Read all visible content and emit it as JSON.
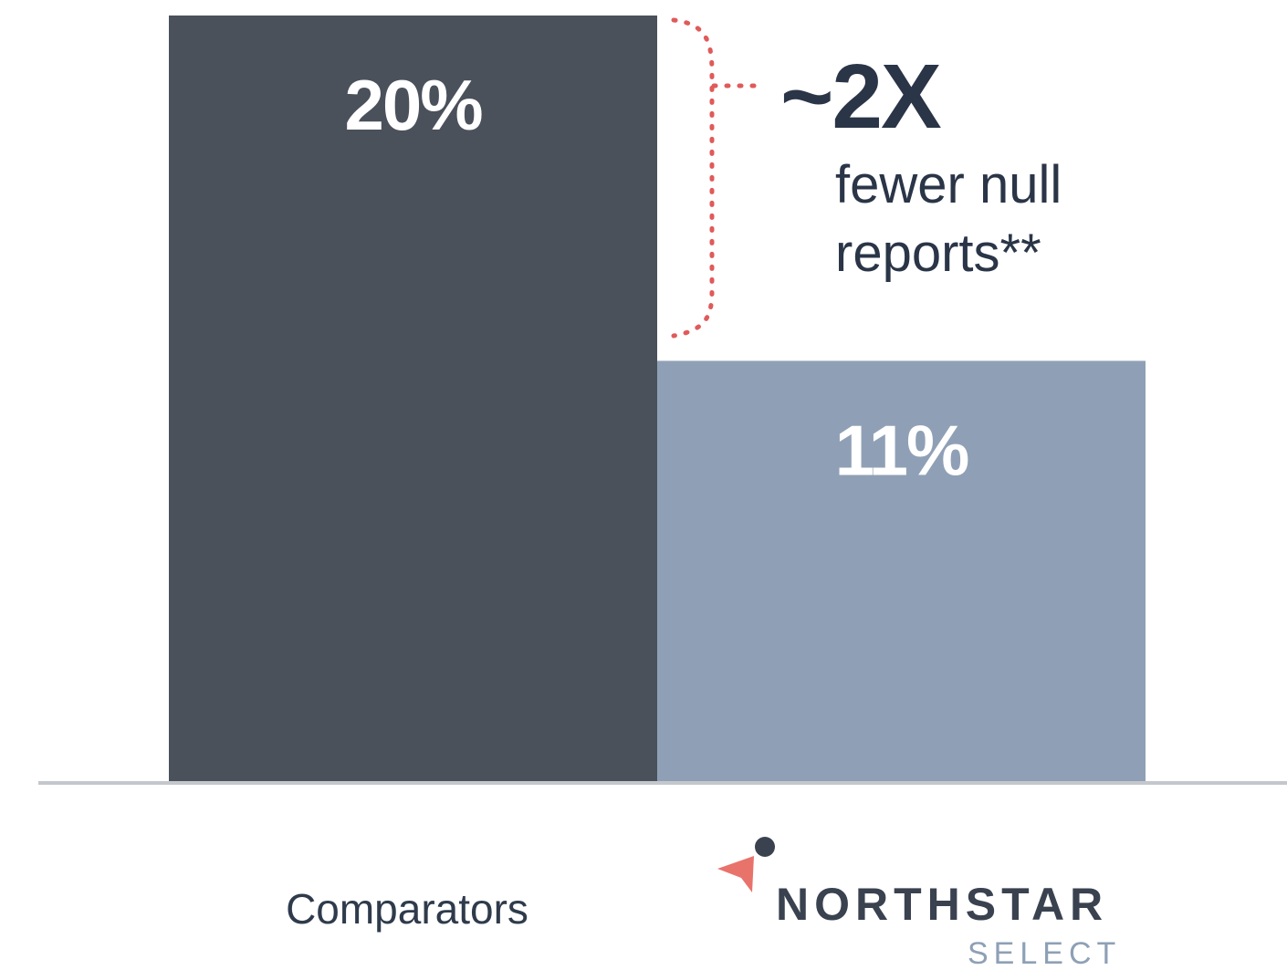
{
  "chart_data": {
    "type": "bar",
    "categories": [
      "Comparators",
      "NORTHSTAR SELECT"
    ],
    "values": [
      20,
      11
    ],
    "value_labels": [
      "20%",
      "11%"
    ],
    "ylim": [
      0,
      20
    ],
    "grid": false,
    "colors": [
      "#4a515b",
      "#8fa0b6"
    ],
    "annotation": {
      "big": "~2X",
      "line1": "fewer null",
      "line2": "reports**",
      "bracket_color": "#e05a5a"
    }
  },
  "labels": {
    "comparators": "Comparators",
    "brand": "NORTHSTAR",
    "brand_sub": "SELECT"
  },
  "logo": {
    "icon": "northstar-arrow-icon",
    "arrow_color": "#e8736b",
    "dot_color": "#3a4250"
  }
}
